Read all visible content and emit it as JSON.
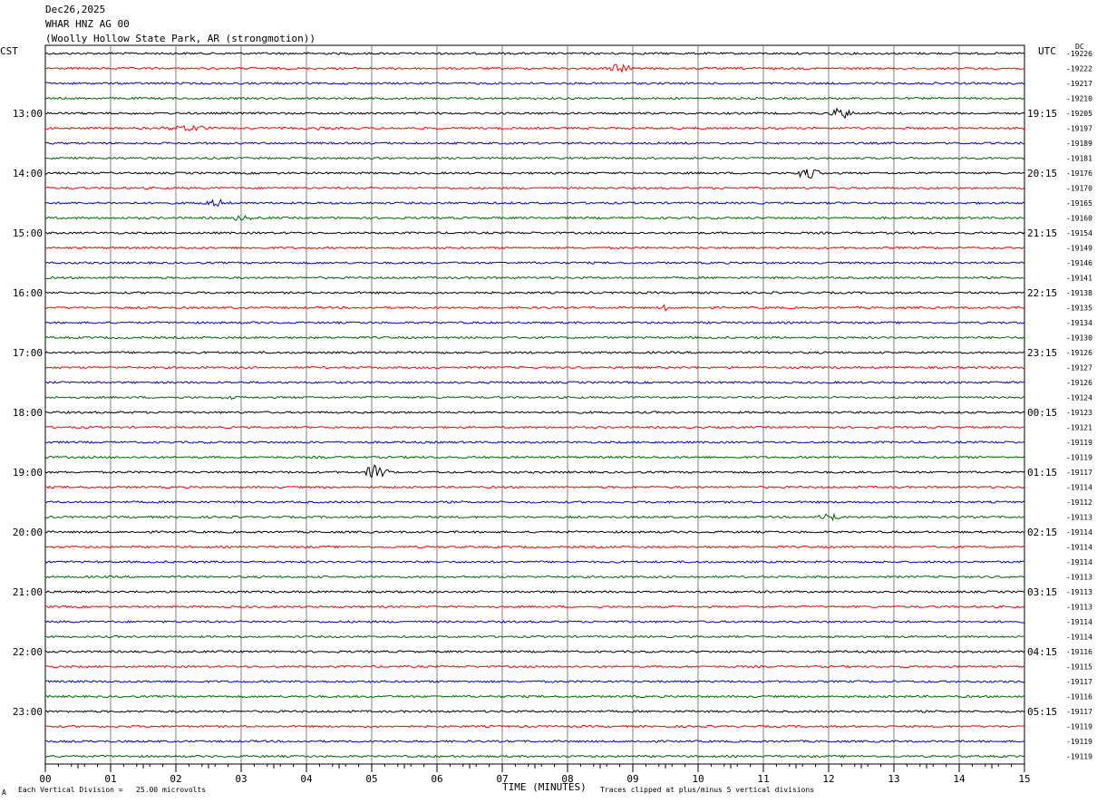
{
  "header": {
    "date": "Dec26,2025",
    "station": "WHAR HNZ AG 00",
    "location": "(Woolly Hollow State Park, AR (strongmotion))"
  },
  "left_zone_label": "CST",
  "right_zone_label": "UTC",
  "dc_label": "DC",
  "footer": {
    "mark": "A",
    "vertical_division": "Each Vertical Division =   25.00 microvolts",
    "clip_note": "Traces clipped at plus/minus 5 vertical divisions"
  },
  "colors": {
    "trace_cycle": [
      "#000000",
      "#ff0000",
      "#0000cc",
      "#006400"
    ],
    "grid": "#808080"
  },
  "chart_data": {
    "type": "line",
    "xlabel": "TIME (MINUTES)",
    "x_ticks": [
      "00",
      "01",
      "02",
      "03",
      "04",
      "05",
      "06",
      "07",
      "08",
      "09",
      "10",
      "11",
      "12",
      "13",
      "14",
      "15"
    ],
    "xlim": [
      0,
      15
    ],
    "cst_labels": [
      "13:00",
      "14:00",
      "15:00",
      "16:00",
      "17:00",
      "18:00",
      "19:00",
      "20:00",
      "21:00",
      "22:00",
      "23:00"
    ],
    "utc_labels": [
      "19:15",
      "20:15",
      "21:15",
      "22:15",
      "23:15",
      "00:15",
      "01:15",
      "02:15",
      "03:15",
      "04:15",
      "05:15"
    ],
    "dc_offsets": [
      "-19226",
      "-19222",
      "-19217",
      "-19210",
      "-19205",
      "-19197",
      "-19189",
      "-19181",
      "-19176",
      "-19170",
      "-19165",
      "-19160",
      "-19154",
      "-19149",
      "-19146",
      "-19141",
      "-19138",
      "-19135",
      "-19134",
      "-19130",
      "-19126",
      "-19127",
      "-19126",
      "-19124",
      "-19123",
      "-19121",
      "-19119",
      "-19119",
      "-19117",
      "-19114",
      "-19112",
      "-19113",
      "-19114",
      "-19114",
      "-19114",
      "-19113",
      "-19113",
      "-19113",
      "-19114",
      "-19114",
      "-19116",
      "-19115",
      "-19117",
      "-19116",
      "-19117",
      "-19119",
      "-19119",
      "-19119"
    ],
    "events": [
      {
        "row": 1,
        "minute": 8.8,
        "amp": 5,
        "width": 0.3
      },
      {
        "row": 4,
        "minute": 12.2,
        "amp": 7,
        "width": 0.25
      },
      {
        "row": 5,
        "minute": 2.2,
        "amp": 4,
        "width": 0.5
      },
      {
        "row": 5,
        "minute": 4.2,
        "amp": 5,
        "width": 0.05
      },
      {
        "row": 8,
        "minute": 11.7,
        "amp": 6,
        "width": 0.3
      },
      {
        "row": 10,
        "minute": 2.6,
        "amp": 4,
        "width": 0.3
      },
      {
        "row": 11,
        "minute": 3.0,
        "amp": 3,
        "width": 0.2
      },
      {
        "row": 17,
        "minute": 9.5,
        "amp": 5,
        "width": 0.08
      },
      {
        "row": 23,
        "minute": 2.8,
        "amp": 4,
        "width": 0.12
      },
      {
        "row": 24,
        "minute": 7.0,
        "amp": 4,
        "width": 0.05
      },
      {
        "row": 28,
        "minute": 5.05,
        "amp": 8,
        "width": 0.25
      },
      {
        "row": 31,
        "minute": 12.0,
        "amp": 5,
        "width": 0.25
      }
    ]
  }
}
